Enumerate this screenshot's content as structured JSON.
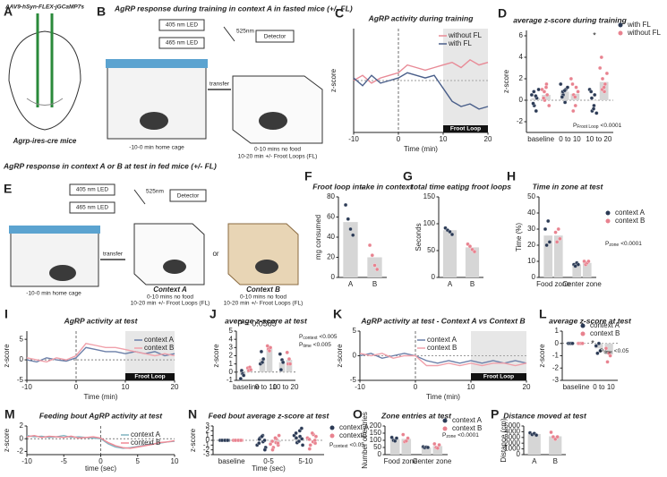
{
  "diagrams": {
    "A": {
      "letter": "A",
      "virus": "AAV9-hSyn-FLEX-jGCaMP7s",
      "mice": "Agrp-ires-cre mice"
    },
    "B": {
      "letter": "B",
      "title": "AgRP response during training in context A in fasted mice (+/- FL)",
      "led405": "405 nm LED",
      "led465": "465 nm LED",
      "emission": "525nm",
      "detector": "Detector",
      "transfer": "transfer",
      "home": "-10-0 min home cage",
      "phase1": "0-10 mins no food",
      "phase2": "10-20 min +/- Froot Loops (FL)"
    },
    "E": {
      "letter": "E",
      "title": "AgRP response in context A or B at test in fed mice (+/- FL)",
      "led405": "405 nm LED",
      "led465": "465 nm LED",
      "emission": "525nm",
      "detector": "Detector",
      "transfer": "transfer",
      "home": "-10-0 min home cage",
      "ctxA": "Context A",
      "phaseA1": "0-10 mins no food",
      "phaseA2": "10-20 min +/- Froot Loops (FL)",
      "or": "or",
      "ctxB": "Context B",
      "phaseB1": "0-10 mins no food",
      "phaseB2": "10-20 min +/- Froot Loops (FL)"
    }
  },
  "chart_data": [
    {
      "letter": "C",
      "type": "line",
      "title": "AgRP activity during training",
      "xlabel": "Time (min)",
      "ylabel": "z-score",
      "x": [
        -10,
        -8,
        -6,
        -4,
        -2,
        0,
        2,
        4,
        6,
        8,
        10,
        12,
        14,
        16,
        18,
        20
      ],
      "xlim": [
        -10,
        20
      ],
      "xticks": [
        -10,
        0,
        10,
        20
      ],
      "ylim": [
        -2,
        2
      ],
      "series": [
        {
          "name": "without FL",
          "color": "#e88a96",
          "values": [
            0,
            0.2,
            -0.1,
            0.1,
            0.2,
            0.3,
            0.6,
            0.5,
            0.4,
            0.5,
            0.6,
            0.7,
            0.5,
            0.8,
            0.6,
            0.7
          ]
        },
        {
          "name": "with FL",
          "color": "#4a5f8a",
          "values": [
            0.1,
            -0.2,
            0.2,
            -0.1,
            0,
            0.1,
            0.3,
            0.2,
            0.1,
            0.2,
            -0.3,
            -0.8,
            -1.0,
            -0.9,
            -1.1,
            -1.0
          ]
        }
      ],
      "event": {
        "label": "Froot Loop",
        "x": [
          10,
          20
        ]
      }
    },
    {
      "letter": "D",
      "type": "bar",
      "title": "average z-score during training",
      "ylabel": "z-score",
      "categories": [
        "baseline",
        "0 to 10",
        "10 to 20"
      ],
      "ylim": [
        -3,
        6.5
      ],
      "yticks": [
        -2,
        0,
        2,
        4,
        6
      ],
      "bar_color": "#d6d6d6",
      "series": [
        {
          "name": "with FL",
          "color": "#2b3a55",
          "values": [
            0.2,
            0.8,
            0.0
          ],
          "points": [
            [
              0.5,
              -0.5,
              0.2,
              -1,
              1,
              0.8,
              -0.3,
              0.4
            ],
            [
              1.5,
              0.5,
              1,
              -0.2,
              1.2,
              0.8,
              0.3,
              0.9
            ],
            [
              1,
              -1,
              0.5,
              -0.5,
              -1.2,
              0.2,
              0.8,
              -0.8
            ]
          ]
        },
        {
          "name": "without FL",
          "color": "#e8828f",
          "values": [
            0.5,
            0.6,
            1.7
          ],
          "points": [
            [
              1,
              0,
              0.5,
              1.5,
              -0.5,
              0.8,
              0.2,
              1.2
            ],
            [
              2,
              0.5,
              1.2,
              -0.5,
              0.8,
              -1,
              1.5,
              0.3
            ],
            [
              3,
              2,
              1.5,
              0.8,
              2.5,
              1,
              4,
              1.2
            ]
          ]
        }
      ],
      "annotations": [
        "*"
      ],
      "stats": [
        {
          "p": "P",
          "sub": "Froot Loop",
          "val": "<0.0001"
        }
      ]
    },
    {
      "letter": "F",
      "type": "bar",
      "title": "Froot loop intake in context",
      "ylabel": "mg consumed",
      "categories": [
        "A",
        "B"
      ],
      "ylim": [
        0,
        80
      ],
      "yticks": [
        0,
        20,
        40,
        60,
        80
      ],
      "bar_color": "#d6d6d6",
      "point_colors": [
        "#2b3a55",
        "#e8828f"
      ],
      "series": [
        {
          "values": [
            55,
            20
          ],
          "points": [
            [
              72,
              58,
              48,
              42
            ],
            [
              32,
              22,
              12,
              8
            ]
          ]
        }
      ],
      "annotations": [
        "*"
      ]
    },
    {
      "letter": "G",
      "type": "bar",
      "title": "total time eating froot loops",
      "ylabel": "Seconds",
      "categories": [
        "A",
        "B"
      ],
      "ylim": [
        0,
        150
      ],
      "yticks": [
        0,
        50,
        100,
        150
      ],
      "bar_color": "#d6d6d6",
      "point_colors": [
        "#2b3a55",
        "#e8828f"
      ],
      "series": [
        {
          "values": [
            88,
            56
          ],
          "points": [
            [
              92,
              88,
              85,
              80
            ],
            [
              62,
              58,
              52,
              48
            ]
          ]
        }
      ],
      "annotations": [
        "*"
      ]
    },
    {
      "letter": "H",
      "type": "bar",
      "title": "Time in zone at test",
      "ylabel": "Time (%)",
      "categories": [
        "Food zone",
        "Center zone"
      ],
      "ylim": [
        0,
        50
      ],
      "yticks": [
        0,
        10,
        20,
        30,
        40,
        50
      ],
      "bar_color": "#d6d6d6",
      "series": [
        {
          "name": "context A",
          "color": "#2b3a55",
          "values": [
            26,
            8
          ],
          "points": [
            [
              30,
              20,
              35,
              22
            ],
            [
              8,
              7,
              9,
              8
            ]
          ]
        },
        {
          "name": "context B",
          "color": "#e8828f",
          "values": [
            26,
            9
          ],
          "points": [
            [
              28,
              22,
              30,
              24
            ],
            [
              10,
              8,
              9,
              10
            ]
          ]
        }
      ],
      "stats": [
        {
          "p": "P",
          "sub": "zone",
          "val": "<0.0001"
        }
      ]
    },
    {
      "letter": "I",
      "type": "line",
      "title": "AgRP activity at test",
      "xlabel": "Time (min)",
      "ylabel": "z-score",
      "x": [
        -10,
        -8,
        -6,
        -4,
        -2,
        0,
        2,
        4,
        6,
        8,
        10,
        12,
        14,
        16,
        18,
        20
      ],
      "xlim": [
        -10,
        20
      ],
      "xticks": [
        -10,
        0,
        10,
        20
      ],
      "ylim": [
        -5,
        7
      ],
      "yticks": [
        -5,
        0,
        5
      ],
      "series": [
        {
          "name": "context A",
          "color": "#6b7fa8",
          "values": [
            0,
            -0.5,
            0.5,
            0,
            -0.3,
            0.5,
            3,
            2.5,
            2,
            2,
            1.5,
            2,
            1.5,
            2,
            1,
            1.5
          ]
        },
        {
          "name": "context B",
          "color": "#f0a0aa",
          "values": [
            0.5,
            0,
            -0.5,
            0.5,
            0,
            1,
            4,
            3.5,
            3,
            3,
            2.5,
            2,
            1.5,
            1,
            1.5,
            1
          ]
        }
      ],
      "event": {
        "label": "Froot Loop",
        "x": [
          10,
          20
        ]
      }
    },
    {
      "letter": "J",
      "type": "bar",
      "title": "average z-score at test",
      "ylabel": "z-score",
      "categories": [
        "baseline",
        "0 to 10",
        "10 to 20"
      ],
      "ylim": [
        -1,
        5
      ],
      "yticks": [
        -1,
        0,
        1,
        2,
        3,
        4,
        5
      ],
      "bar_color": "#d6d6d6",
      "series": [
        {
          "name": "context A",
          "color": "#2b3a55",
          "values": [
            -0.3,
            1.6,
            1.2
          ],
          "points": [
            [
              -0.8,
              0.2,
              -0.2,
              -0.4
            ],
            [
              1,
              2.5,
              1.2,
              1.6
            ],
            [
              2.2,
              0.3,
              1.5,
              1.2
            ]
          ]
        },
        {
          "name": "context B",
          "color": "#e8828f",
          "values": [
            0.4,
            2.9,
            1.5
          ],
          "points": [
            [
              0.5,
              0.2,
              0.6,
              0.3
            ],
            [
              3.2,
              2.8,
              2.6,
              3.0
            ],
            [
              2.4,
              1.0,
              1.6,
              1.0
            ]
          ]
        }
      ],
      "annotations": [
        "P = 0.0585"
      ],
      "stats": [
        {
          "p": "P",
          "sub": "context",
          "val": "<0.005"
        },
        {
          "p": "P",
          "sub": "time",
          "val": "<0.005"
        }
      ]
    },
    {
      "letter": "K",
      "type": "line",
      "title": "AgRP activity at test - Context A vs Context B",
      "xlabel": "Time (min)",
      "ylabel": "z-score",
      "x": [
        -10,
        -8,
        -6,
        -4,
        -2,
        0,
        2,
        4,
        6,
        8,
        10,
        12,
        14,
        16,
        18,
        20
      ],
      "xlim": [
        -10,
        20
      ],
      "xticks": [
        -10,
        0,
        10,
        20
      ],
      "ylim": [
        -5,
        5
      ],
      "yticks": [
        -5,
        0,
        5
      ],
      "series": [
        {
          "name": "context A",
          "color": "#6b7fa8",
          "values": [
            0,
            0.5,
            -0.5,
            0,
            0.5,
            0,
            -1,
            -1.5,
            -1,
            -1.5,
            -1,
            -1.5,
            -1,
            -1.5,
            -1,
            -1.5
          ]
        },
        {
          "name": "context B",
          "color": "#f0a0aa",
          "values": [
            0.5,
            0,
            0.5,
            -0.5,
            0,
            0,
            -2,
            -2,
            -1.5,
            -2,
            -1.5,
            -2,
            -1.5,
            -1.5,
            -2,
            -1.5
          ]
        }
      ],
      "event": {
        "label": "Froot Loop",
        "x": [
          10,
          20
        ]
      }
    },
    {
      "letter": "L",
      "type": "bar",
      "title": "average z-score at test",
      "ylabel": "z-score",
      "categories": [
        "baseline",
        "0 to 10"
      ],
      "ylim": [
        -3,
        1
      ],
      "yticks": [
        -3,
        -2,
        -1,
        0,
        1
      ],
      "bar_color": "#d6d6d6",
      "series": [
        {
          "name": "context A",
          "color": "#2b3a55",
          "values": [
            0,
            -0.4
          ],
          "points": [
            [
              0,
              0,
              0,
              0
            ],
            [
              -0.2,
              -0.8,
              0,
              -0.6
            ]
          ]
        },
        {
          "name": "context B",
          "color": "#e8828f",
          "values": [
            0,
            -0.9
          ],
          "points": [
            [
              0,
              0,
              0,
              0
            ],
            [
              -0.4,
              -1.5,
              -0.8,
              -1.0
            ]
          ]
        }
      ],
      "annotations": [
        "*"
      ],
      "stats": [
        {
          "p": "P",
          "sub": "time",
          "val": "<0.05"
        }
      ]
    },
    {
      "letter": "M",
      "type": "line",
      "title": "Feeding bout AgRP activity at test",
      "xlabel": "time (sec)",
      "ylabel": "z-score",
      "x": [
        -10,
        -9,
        -8,
        -7,
        -6,
        -5,
        -4,
        -3,
        -2,
        -1,
        0,
        1,
        2,
        3,
        4,
        5,
        6,
        7,
        8,
        9,
        10
      ],
      "xlim": [
        -10,
        10
      ],
      "xticks": [
        -10,
        -5,
        0,
        5,
        10
      ],
      "ylim": [
        -2.5,
        2
      ],
      "yticks": [
        -2,
        0,
        2
      ],
      "series": [
        {
          "name": "context A",
          "color": "#7fb3c0",
          "values": [
            0.5,
            0.3,
            0.4,
            0.2,
            0.3,
            0.5,
            0.2,
            0.3,
            0.2,
            0.1,
            0,
            -0.8,
            -1.3,
            -1.5,
            -1.4,
            -1.2,
            -1.0,
            -0.8,
            -0.7,
            -0.5,
            -0.4
          ]
        },
        {
          "name": "context B",
          "color": "#f08a96",
          "values": [
            0.3,
            0.5,
            0.2,
            0.4,
            0.3,
            0.2,
            0.4,
            0.1,
            0.2,
            0.3,
            0.1,
            -0.6,
            -1.1,
            -1.4,
            -1.5,
            -1.3,
            -1.1,
            -0.9,
            -0.6,
            -0.5,
            -0.3
          ]
        }
      ]
    },
    {
      "letter": "N",
      "type": "bar",
      "title": "Feed bout average z-score at test",
      "xlabel": "Time (sec)",
      "ylabel": "z-score",
      "categories": [
        "baseline",
        "0-5",
        "5-10"
      ],
      "ylim": [
        -3,
        3
      ],
      "yticks": [
        -3,
        -2,
        -1,
        0,
        1,
        2,
        3
      ],
      "bar_color": "#d6d6d6",
      "series": [
        {
          "name": "context A",
          "color": "#2b3a55",
          "values": [
            0,
            -0.1,
            0.4
          ],
          "points": [
            [
              0,
              0,
              0,
              0,
              0,
              0,
              0,
              0,
              0,
              0
            ],
            [
              -1,
              0.5,
              -0.3,
              1,
              -1.5,
              0.2,
              -0.6,
              0.8,
              -2,
              0
            ],
            [
              1,
              -0.5,
              0.8,
              2,
              -1,
              0.5,
              1.5,
              -0.2,
              0.3,
              2.5
            ]
          ]
        },
        {
          "name": "contextB",
          "color": "#e8828f",
          "values": [
            0,
            -0.4,
            -0.1
          ],
          "points": [
            [
              0,
              0,
              0,
              0,
              0,
              0,
              0,
              0,
              0,
              0
            ],
            [
              -0.8,
              -1.5,
              0.3,
              -0.5,
              1,
              -2,
              -0.2,
              0.5,
              -1,
              -0.6
            ],
            [
              0.5,
              -1,
              1.2,
              -0.3,
              0.8,
              -1.8,
              0.2,
              1.5,
              -0.6,
              0
            ]
          ]
        }
      ],
      "stats": [
        {
          "p": "P",
          "sub": "context",
          "val": "<0.05"
        }
      ]
    },
    {
      "letter": "O",
      "type": "bar",
      "title": "Zone entries at test",
      "ylabel": "Number of entries",
      "categories": [
        "Food zone",
        "Center zone"
      ],
      "ylim": [
        0,
        200
      ],
      "yticks": [
        0,
        50,
        100,
        150,
        200
      ],
      "bar_color": "#d6d6d6",
      "series": [
        {
          "name": "context A",
          "color": "#2b3a55",
          "values": [
            108,
            51
          ],
          "points": [
            [
              120,
              100,
              95,
              115
            ],
            [
              55,
              48,
              52,
              50
            ]
          ]
        },
        {
          "name": "context B",
          "color": "#e8828f",
          "values": [
            110,
            60
          ],
          "points": [
            [
              140,
              90,
              95,
              115
            ],
            [
              75,
              50,
              45,
              68
            ]
          ]
        }
      ],
      "stats": [
        {
          "p": "P",
          "sub": "zone",
          "val": "<0.0001"
        }
      ]
    },
    {
      "letter": "P",
      "type": "bar",
      "title": "Distance moved at test",
      "ylabel": "Distance (cm)",
      "categories": [
        "A",
        "B"
      ],
      "ylim": [
        0,
        5000
      ],
      "yticks": [
        0,
        1000,
        2000,
        3000,
        4000,
        5000
      ],
      "bar_color": "#d6d6d6",
      "point_colors": [
        "#2b3a55",
        "#e8828f"
      ],
      "series": [
        {
          "values": [
            3600,
            3200
          ],
          "points": [
            [
              3800,
              3500,
              3700,
              3400
            ],
            [
              3900,
              3100,
              2700,
              3100
            ]
          ]
        }
      ]
    }
  ]
}
